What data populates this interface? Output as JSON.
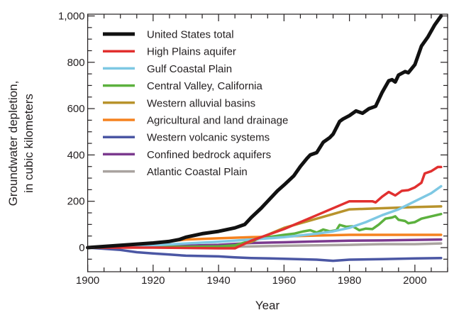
{
  "chart_data": {
    "type": "line",
    "title": "",
    "xlabel": "Year",
    "ylabel": [
      "Groundwater depletion,",
      "in cubic kilometers"
    ],
    "xlim": [
      1900,
      2010
    ],
    "ylim": [
      -100,
      1010
    ],
    "xticks": [
      1900,
      1920,
      1940,
      1960,
      1980,
      2000
    ],
    "yticks": [
      0,
      200,
      400,
      600,
      800,
      1000
    ],
    "ytick_labels": [
      "0",
      "200",
      "400",
      "600",
      "800",
      "1,000"
    ],
    "grid": false,
    "legend_position": "top-left",
    "series": [
      {
        "name": "United States total",
        "color": "#111111",
        "x": [
          1900,
          1905,
          1910,
          1915,
          1920,
          1925,
          1928,
          1930,
          1935,
          1940,
          1945,
          1948,
          1950,
          1953,
          1955,
          1958,
          1960,
          1963,
          1965,
          1967,
          1968,
          1970,
          1972,
          1974,
          1975,
          1977,
          1978,
          1980,
          1982,
          1984,
          1986,
          1988,
          1990,
          1992,
          1993,
          1994,
          1995,
          1997,
          1998,
          2000,
          2002,
          2004,
          2006,
          2008
        ],
        "y": [
          0,
          5,
          10,
          15,
          20,
          27,
          35,
          45,
          60,
          70,
          85,
          100,
          130,
          170,
          200,
          245,
          270,
          310,
          350,
          385,
          400,
          410,
          455,
          475,
          490,
          545,
          555,
          570,
          590,
          580,
          600,
          610,
          670,
          720,
          725,
          715,
          745,
          760,
          755,
          790,
          870,
          910,
          960,
          1000
        ]
      },
      {
        "name": "High Plains aquifer",
        "color": "#e1302f",
        "x": [
          1900,
          1920,
          1940,
          1945,
          1950,
          1960,
          1970,
          1980,
          1987,
          1988,
          1990,
          1992,
          1994,
          1996,
          1998,
          2000,
          2002,
          2003,
          2005,
          2007,
          2008
        ],
        "y": [
          0,
          0,
          -3,
          -3,
          30,
          80,
          140,
          200,
          200,
          195,
          220,
          240,
          225,
          245,
          248,
          260,
          280,
          320,
          330,
          348,
          348
        ]
      },
      {
        "name": "Gulf Coastal Plain",
        "color": "#7ec8e3",
        "x": [
          1900,
          1920,
          1940,
          1950,
          1960,
          1970,
          1975,
          1980,
          1985,
          1990,
          1995,
          2000,
          2005,
          2008
        ],
        "y": [
          0,
          10,
          25,
          35,
          45,
          60,
          70,
          85,
          110,
          140,
          165,
          200,
          235,
          265
        ]
      },
      {
        "name": "Central Valley, California",
        "color": "#5cb13e",
        "x": [
          1900,
          1920,
          1940,
          1945,
          1950,
          1955,
          1960,
          1963,
          1966,
          1968,
          1970,
          1972,
          1974,
          1976,
          1977,
          1979,
          1981,
          1983,
          1985,
          1987,
          1989,
          1991,
          1993,
          1994,
          1995,
          1997,
          1998,
          2000,
          2002,
          2005,
          2008
        ],
        "y": [
          0,
          2,
          5,
          10,
          30,
          45,
          55,
          60,
          70,
          75,
          65,
          78,
          70,
          75,
          98,
          90,
          92,
          75,
          82,
          80,
          100,
          125,
          130,
          135,
          120,
          115,
          105,
          110,
          125,
          135,
          145
        ]
      },
      {
        "name": "Western alluvial basins",
        "color": "#b8932c",
        "x": [
          1900,
          1920,
          1945,
          1950,
          1955,
          1960,
          1965,
          1970,
          1975,
          1980,
          1990,
          2000,
          2008
        ],
        "y": [
          0,
          2,
          5,
          25,
          55,
          85,
          105,
          125,
          145,
          165,
          170,
          175,
          178
        ]
      },
      {
        "name": "Agricultural and land drainage",
        "color": "#f5821f",
        "x": [
          1900,
          1920,
          1930,
          1940,
          1950,
          1960,
          1970,
          1980,
          2008
        ],
        "y": [
          0,
          20,
          35,
          40,
          45,
          48,
          52,
          55,
          55
        ]
      },
      {
        "name": "Western volcanic systems",
        "color": "#4b57a4",
        "x": [
          1900,
          1910,
          1915,
          1920,
          1925,
          1930,
          1940,
          1945,
          1950,
          1960,
          1970,
          1975,
          1980,
          1990,
          2000,
          2008
        ],
        "y": [
          0,
          -10,
          -20,
          -25,
          -30,
          -35,
          -38,
          -42,
          -45,
          -48,
          -52,
          -57,
          -52,
          -50,
          -47,
          -45
        ]
      },
      {
        "name": "Confined bedrock aquifers",
        "color": "#7b3a8e",
        "x": [
          1900,
          1920,
          1940,
          1950,
          1960,
          1970,
          1980,
          1990,
          2008
        ],
        "y": [
          0,
          5,
          12,
          20,
          23,
          27,
          30,
          31,
          35
        ]
      },
      {
        "name": "Atlantic Coastal Plain",
        "color": "#a9a39f",
        "x": [
          1900,
          1940,
          1950,
          1960,
          1970,
          1980,
          1990,
          2000,
          2008
        ],
        "y": [
          0,
          3,
          5,
          8,
          10,
          12,
          15,
          15,
          18
        ]
      }
    ]
  }
}
